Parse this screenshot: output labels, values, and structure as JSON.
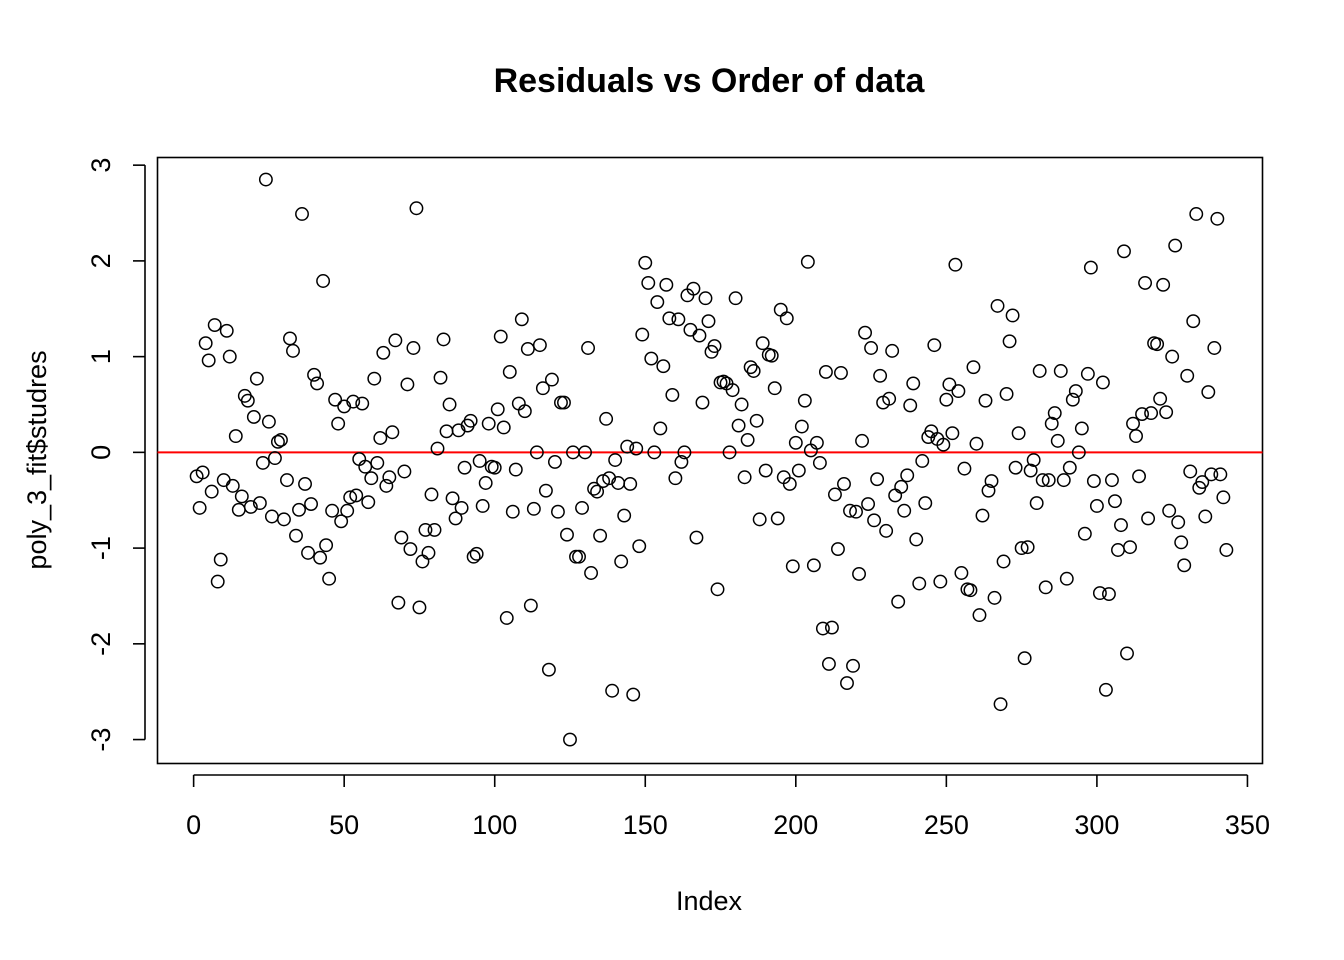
{
  "chart_data": {
    "type": "scatter",
    "title": "Residuals vs Order of data",
    "xlabel": "Index",
    "ylabel": "poly_3_fit$studres",
    "xlim": [
      -12,
      355
    ],
    "ylim": [
      -3.25,
      3.08
    ],
    "x_ticks": [
      0,
      50,
      100,
      150,
      200,
      250,
      300,
      350
    ],
    "y_ticks": [
      -3,
      -2,
      -1,
      0,
      1,
      2,
      3
    ],
    "x_tick_labels": [
      "0",
      "50",
      "100",
      "150",
      "200",
      "250",
      "300",
      "350"
    ],
    "y_tick_labels": [
      "-3",
      "-2",
      "-1",
      "0",
      "1",
      "2",
      "3"
    ],
    "grid": false,
    "reference_line": {
      "y": 0,
      "color": "#ff0000"
    },
    "marker": "open-circle",
    "point_color": "#000000",
    "values": [
      -0.25,
      -0.58,
      -0.21,
      1.14,
      0.96,
      -0.41,
      1.33,
      -1.35,
      -1.12,
      -0.29,
      1.27,
      1.0,
      -0.35,
      0.17,
      -0.6,
      -0.46,
      0.59,
      0.54,
      -0.57,
      0.37,
      0.77,
      -0.53,
      -0.11,
      2.85,
      0.32,
      -0.67,
      -0.06,
      0.11,
      0.13,
      -0.7,
      -0.29,
      1.19,
      1.06,
      -0.87,
      -0.6,
      2.49,
      -0.33,
      -1.05,
      -0.54,
      0.81,
      0.72,
      -1.1,
      1.79,
      -0.97,
      -1.32,
      -0.61,
      0.55,
      0.3,
      -0.72,
      0.48,
      -0.61,
      -0.47,
      0.53,
      -0.45,
      -0.07,
      0.51,
      -0.15,
      -0.52,
      -0.27,
      0.77,
      -0.11,
      0.15,
      1.04,
      -0.35,
      -0.26,
      0.21,
      1.17,
      -1.57,
      -0.89,
      -0.2,
      0.71,
      -1.01,
      1.09,
      2.55,
      -1.62,
      -1.14,
      -0.81,
      -1.05,
      -0.44,
      -0.81,
      0.04,
      0.78,
      1.18,
      0.22,
      0.5,
      -0.48,
      -0.69,
      0.23,
      -0.58,
      -0.16,
      0.28,
      0.33,
      -1.09,
      -1.06,
      -0.09,
      -0.56,
      -0.32,
      0.3,
      -0.15,
      -0.16,
      0.45,
      1.21,
      0.26,
      -1.73,
      0.84,
      -0.62,
      -0.18,
      0.51,
      1.39,
      0.43,
      1.08,
      -1.6,
      -0.59,
      0.0,
      1.12,
      0.67,
      -0.4,
      -2.27,
      0.76,
      -0.1,
      -0.62,
      0.52,
      0.52,
      -0.86,
      -3.0,
      0.0,
      -1.09,
      -1.09,
      -0.58,
      0.0,
      1.09,
      -1.26,
      -0.38,
      -0.41,
      -0.87,
      -0.3,
      0.35,
      -0.27,
      -2.49,
      -0.08,
      -0.32,
      -1.14,
      -0.66,
      0.06,
      -0.33,
      -2.53,
      0.04,
      -0.98,
      1.23,
      1.98,
      1.77,
      0.98,
      0.0,
      1.57,
      0.25,
      0.9,
      1.75,
      1.4,
      0.6,
      -0.27,
      1.39,
      -0.1,
      0.0,
      1.64,
      1.28,
      1.71,
      -0.89,
      1.22,
      0.52,
      1.61,
      1.37,
      1.05,
      1.11,
      -1.43,
      0.73,
      0.74,
      0.72,
      0.0,
      0.65,
      1.61,
      0.28,
      0.5,
      -0.26,
      0.13,
      0.89,
      0.85,
      0.33,
      -0.7,
      1.14,
      -0.19,
      1.02,
      1.01,
      0.67,
      -0.69,
      1.49,
      -0.26,
      1.4,
      -0.33,
      -1.19,
      0.1,
      -0.19,
      0.27,
      0.54,
      1.99,
      0.02,
      -1.18,
      0.1,
      -0.11,
      -1.84,
      0.84,
      -2.21,
      -1.83,
      -0.44,
      -1.01,
      0.83,
      -0.33,
      -2.41,
      -0.61,
      -2.23,
      -0.62,
      -1.27,
      0.12,
      1.25,
      -0.54,
      1.09,
      -0.71,
      -0.28,
      0.8,
      0.52,
      -0.82,
      0.56,
      1.06,
      -0.45,
      -1.56,
      -0.36,
      -0.61,
      -0.24,
      0.49,
      0.72,
      -0.91,
      -1.37,
      -0.09,
      -0.53,
      0.16,
      0.22,
      1.12,
      0.14,
      -1.35,
      0.08,
      0.55,
      0.71,
      0.2,
      1.96,
      0.64,
      -1.26,
      -0.17,
      -1.43,
      -1.44,
      0.89,
      0.09,
      -1.7,
      -0.66,
      0.54,
      -0.4,
      -0.3,
      -1.52,
      1.53,
      -2.63,
      -1.14,
      0.61,
      1.16,
      1.43,
      -0.16,
      0.2,
      -1.0,
      -2.15,
      -0.99,
      -0.19,
      -0.08,
      -0.53,
      0.85,
      -0.29,
      -1.41,
      -0.29,
      0.3,
      0.41,
      0.12,
      0.85,
      -0.29,
      -1.32,
      -0.16,
      0.55,
      0.64,
      0.0,
      0.25,
      -0.85,
      0.82,
      1.93,
      -0.3,
      -0.56,
      -1.47,
      0.73,
      -2.48,
      -1.48,
      -0.29,
      -0.51,
      -1.02,
      -0.76,
      2.1,
      -2.1,
      -0.99,
      0.3,
      0.17,
      -0.25,
      0.4,
      1.77,
      -0.69,
      0.41,
      1.14,
      1.13,
      0.56,
      1.75,
      0.42,
      -0.61,
      1.0,
      2.16,
      -0.73,
      -0.94,
      -1.18,
      0.8,
      -0.2,
      1.37,
      2.49,
      -0.37,
      -0.31,
      -0.67,
      0.63,
      -0.23,
      1.09,
      2.44,
      -0.23,
      -0.47,
      -1.02
    ]
  }
}
